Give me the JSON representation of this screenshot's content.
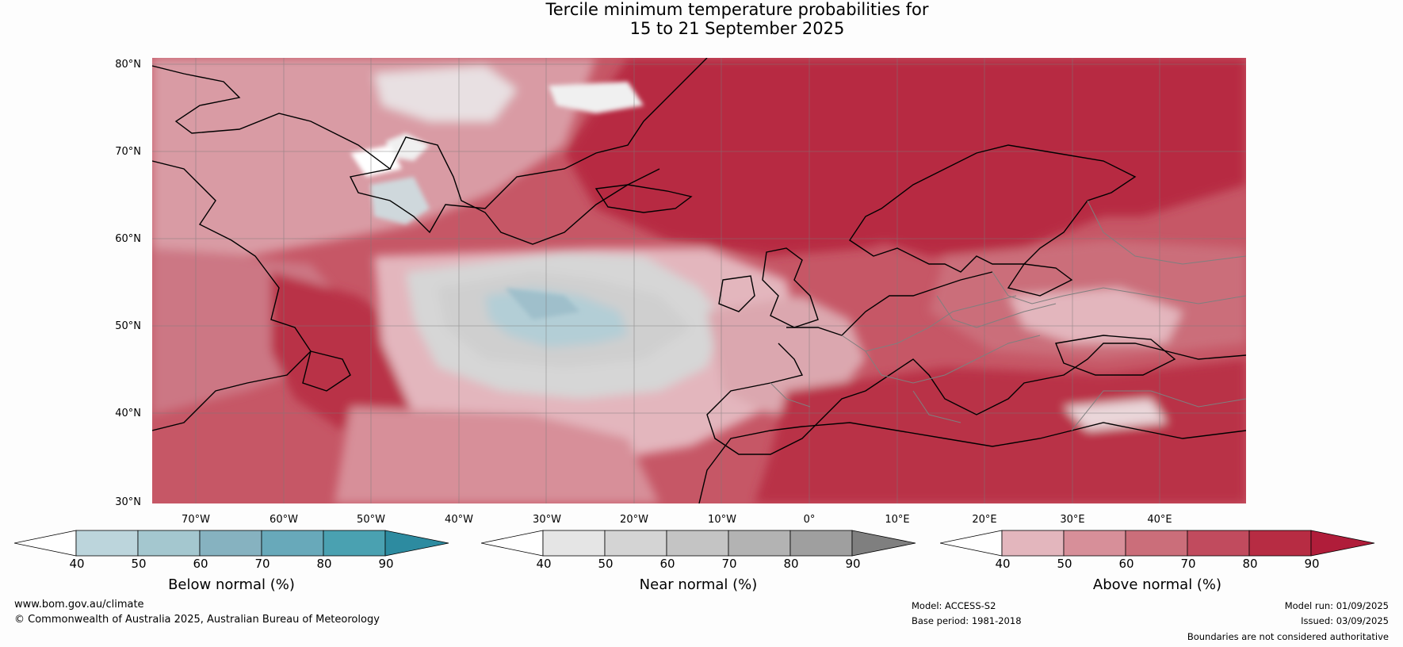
{
  "title": {
    "line1": "Tercile minimum temperature probabilities for",
    "line2": "15 to 21 September 2025"
  },
  "map": {
    "region": "North Atlantic and Europe",
    "lat_range": [
      30,
      80
    ],
    "lon_range": [
      -80,
      45
    ],
    "lat_labels": [
      "80°N",
      "70°N",
      "60°N",
      "50°N",
      "40°N",
      "30°N"
    ],
    "lon_labels": [
      "70°W",
      "60°W",
      "50°W",
      "40°W",
      "30°W",
      "20°W",
      "10°W",
      "0°",
      "10°E",
      "20°E",
      "30°E",
      "40°E"
    ],
    "colors": {
      "background": "#c44b5c",
      "ocean_above": "#c65766",
      "land_above": "#b8283f",
      "near_normal": "#d6d6d6",
      "below_normal": "#b3ced6",
      "coastline": "#000000",
      "borders": "#7f7f7f"
    }
  },
  "legends": [
    {
      "title": "Below normal (%)",
      "ticks": [
        "40",
        "50",
        "60",
        "70",
        "80",
        "90"
      ],
      "colors": [
        "#ffffff",
        "#bcd5dc",
        "#a4c7cf",
        "#86b2c0",
        "#68a9ba",
        "#4aa1b1",
        "#2d8ba0"
      ]
    },
    {
      "title": "Near normal (%)",
      "ticks": [
        "40",
        "50",
        "60",
        "70",
        "80",
        "90"
      ],
      "colors": [
        "#ffffff",
        "#e5e5e5",
        "#d4d4d4",
        "#c4c4c4",
        "#b3b3b3",
        "#9f9f9f",
        "#7f7f7f"
      ]
    },
    {
      "title": "Above normal (%)",
      "ticks": [
        "40",
        "50",
        "60",
        "70",
        "80",
        "90"
      ],
      "colors": [
        "#ffffff",
        "#e3b6bd",
        "#d78f99",
        "#cb6e7a",
        "#c14b5e",
        "#b72c43",
        "#b01d3a"
      ]
    }
  ],
  "footer": {
    "website": "www.bom.gov.au/climate",
    "copyright": "© Commonwealth of Australia 2025, Australian Bureau of Meteorology",
    "model": "Model: ACCESS-S2",
    "base_period": "Base period: 1981-2018",
    "model_run": "Model run: 01/09/2025",
    "issued": "Issued: 03/09/2025",
    "disclaimer": "Boundaries are not considered authoritative"
  }
}
